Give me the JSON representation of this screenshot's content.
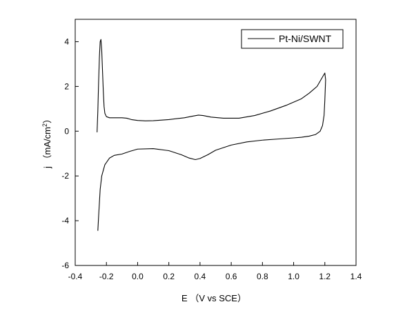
{
  "chart_data": {
    "type": "line",
    "xlabel": "E （V vs SCE）",
    "ylabel": "j （mA/cm²）",
    "ylabel_main": "j （mA/cm",
    "ylabel_sup": "2",
    "ylabel_end": "）",
    "xlim": [
      -0.4,
      1.4
    ],
    "ylim": [
      -6,
      5
    ],
    "xticks": [
      -0.4,
      -0.2,
      0.0,
      0.2,
      0.4,
      0.6,
      0.8,
      1.0,
      1.2,
      1.4
    ],
    "xtick_labels": [
      "-0.4",
      "-0.2",
      "0.0",
      "0.2",
      "0.4",
      "0.6",
      "0.8",
      "1.0",
      "1.2",
      "1.4"
    ],
    "yticks": [
      -6,
      -4,
      -2,
      0,
      2,
      4
    ],
    "ytick_labels": [
      "-6",
      "-4",
      "-2",
      "0",
      "2",
      "4"
    ],
    "grid": false,
    "legend_position": "top-right",
    "series": [
      {
        "name": "Pt-Ni/SWNT",
        "color": "#000000",
        "points": [
          [
            -0.26,
            -0.05
          ],
          [
            -0.255,
            0.9
          ],
          [
            -0.25,
            2.2
          ],
          [
            -0.245,
            3.3
          ],
          [
            -0.24,
            4.0
          ],
          [
            -0.235,
            4.1
          ],
          [
            -0.23,
            3.6
          ],
          [
            -0.225,
            2.7
          ],
          [
            -0.22,
            1.8
          ],
          [
            -0.215,
            1.1
          ],
          [
            -0.21,
            0.8
          ],
          [
            -0.2,
            0.65
          ],
          [
            -0.18,
            0.6
          ],
          [
            -0.12,
            0.6
          ],
          [
            -0.1,
            0.6
          ],
          [
            -0.07,
            0.58
          ],
          [
            -0.04,
            0.52
          ],
          [
            0.0,
            0.48
          ],
          [
            0.05,
            0.46
          ],
          [
            0.1,
            0.47
          ],
          [
            0.2,
            0.52
          ],
          [
            0.3,
            0.6
          ],
          [
            0.35,
            0.67
          ],
          [
            0.39,
            0.72
          ],
          [
            0.42,
            0.7
          ],
          [
            0.47,
            0.63
          ],
          [
            0.55,
            0.58
          ],
          [
            0.65,
            0.58
          ],
          [
            0.75,
            0.7
          ],
          [
            0.85,
            0.9
          ],
          [
            0.95,
            1.15
          ],
          [
            1.05,
            1.45
          ],
          [
            1.1,
            1.7
          ],
          [
            1.15,
            2.0
          ],
          [
            1.2,
            2.6
          ],
          [
            1.205,
            2.3
          ],
          [
            1.2,
            1.4
          ],
          [
            1.195,
            0.7
          ],
          [
            1.185,
            0.25
          ],
          [
            1.17,
            0.0
          ],
          [
            1.14,
            -0.15
          ],
          [
            1.1,
            -0.22
          ],
          [
            1.05,
            -0.27
          ],
          [
            1.0,
            -0.3
          ],
          [
            0.9,
            -0.35
          ],
          [
            0.8,
            -0.4
          ],
          [
            0.7,
            -0.48
          ],
          [
            0.6,
            -0.62
          ],
          [
            0.5,
            -0.85
          ],
          [
            0.45,
            -1.05
          ],
          [
            0.4,
            -1.22
          ],
          [
            0.37,
            -1.27
          ],
          [
            0.33,
            -1.2
          ],
          [
            0.28,
            -1.05
          ],
          [
            0.2,
            -0.87
          ],
          [
            0.1,
            -0.78
          ],
          [
            0.0,
            -0.8
          ],
          [
            -0.05,
            -0.9
          ],
          [
            -0.1,
            -1.02
          ],
          [
            -0.15,
            -1.08
          ],
          [
            -0.18,
            -1.2
          ],
          [
            -0.21,
            -1.5
          ],
          [
            -0.23,
            -2.0
          ],
          [
            -0.24,
            -2.6
          ],
          [
            -0.245,
            -3.2
          ],
          [
            -0.25,
            -3.8
          ],
          [
            -0.255,
            -4.45
          ]
        ]
      }
    ]
  }
}
